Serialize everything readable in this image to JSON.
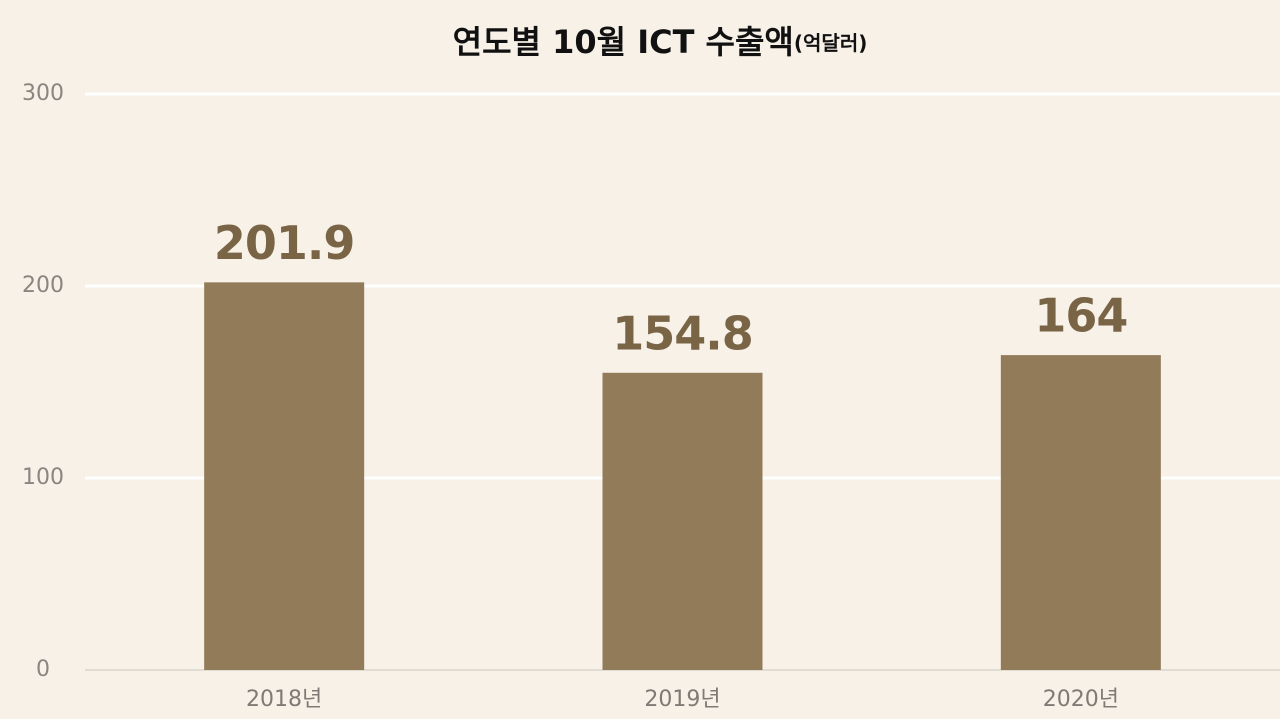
{
  "chart_data": {
    "type": "bar",
    "title": "연도별 10월 ICT 수출액",
    "unit": "(억달러)",
    "categories": [
      "2018년",
      "2019년",
      "2020년"
    ],
    "values": [
      201.9,
      154.8,
      164
    ],
    "color": "#917b58",
    "ylim": [
      0,
      300
    ],
    "yticks": [
      0,
      100,
      200,
      300
    ],
    "grid": true
  }
}
